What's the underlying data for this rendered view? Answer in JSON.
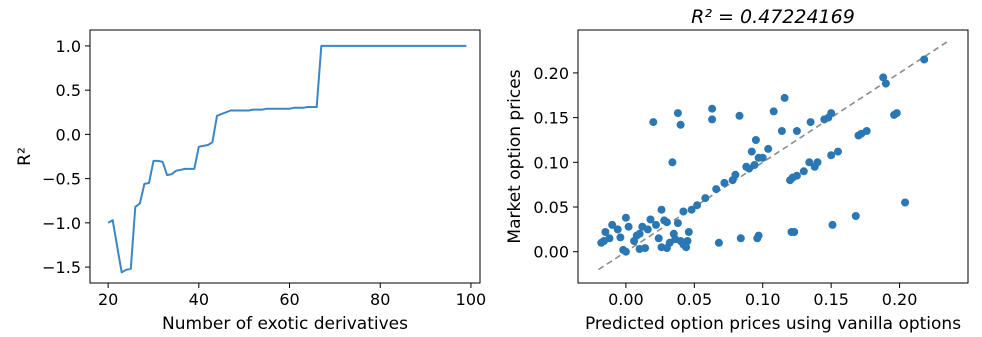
{
  "chart_data": [
    {
      "type": "line",
      "title": "",
      "xlabel": "Number of exotic derivatives",
      "ylabel": "R²",
      "xlim": [
        16,
        102
      ],
      "ylim": [
        -1.68,
        1.18
      ],
      "xticks": [
        20,
        40,
        60,
        80,
        100
      ],
      "xtick_labels": [
        "20",
        "40",
        "60",
        "80",
        "100"
      ],
      "yticks": [
        -1.5,
        -1.0,
        -0.5,
        0.0,
        0.5,
        1.0
      ],
      "ytick_labels": [
        "−1.5",
        "−1.0",
        "−0.5",
        "0.0",
        "0.5",
        "1.0"
      ],
      "grid": false,
      "series": [
        {
          "color": "#3a86c6",
          "x": [
            20,
            21,
            22,
            23,
            24,
            25,
            26,
            27,
            28,
            29,
            30,
            31,
            32,
            33,
            34,
            35,
            36,
            37,
            38,
            39,
            40,
            41,
            42,
            43,
            44,
            45,
            46,
            47,
            48,
            49,
            50,
            51,
            52,
            53,
            54,
            55,
            56,
            57,
            58,
            59,
            60,
            61,
            62,
            63,
            64,
            65,
            66,
            67,
            68,
            69,
            70,
            71,
            72,
            73,
            74,
            75,
            76,
            77,
            78,
            79,
            80,
            81,
            82,
            83,
            84,
            85,
            86,
            87,
            88,
            89,
            90,
            91,
            92,
            93,
            94,
            95,
            96,
            97,
            98,
            99
          ],
          "values": [
            -1.0,
            -0.97,
            -1.27,
            -1.56,
            -1.53,
            -1.52,
            -0.82,
            -0.78,
            -0.56,
            -0.55,
            -0.3,
            -0.3,
            -0.31,
            -0.46,
            -0.45,
            -0.41,
            -0.4,
            -0.39,
            -0.39,
            -0.39,
            -0.14,
            -0.13,
            -0.12,
            -0.09,
            0.21,
            0.23,
            0.25,
            0.27,
            0.27,
            0.27,
            0.27,
            0.27,
            0.28,
            0.28,
            0.28,
            0.29,
            0.29,
            0.29,
            0.29,
            0.29,
            0.29,
            0.3,
            0.3,
            0.3,
            0.31,
            0.31,
            0.31,
            1.0,
            1.0,
            1.0,
            1.0,
            1.0,
            1.0,
            1.0,
            1.0,
            1.0,
            1.0,
            1.0,
            1.0,
            1.0,
            1.0,
            1.0,
            1.0,
            1.0,
            1.0,
            1.0,
            1.0,
            1.0,
            1.0,
            1.0,
            1.0,
            1.0,
            1.0,
            1.0,
            1.0,
            1.0,
            1.0,
            1.0,
            1.0,
            1.0
          ]
        }
      ]
    },
    {
      "type": "scatter",
      "title": "R² = 0.47224169",
      "xlabel": "Predicted option prices using vanilla options",
      "ylabel": "Market option prices",
      "xlim": [
        -0.035,
        0.25
      ],
      "ylim": [
        -0.035,
        0.248
      ],
      "xticks": [
        0.0,
        0.05,
        0.1,
        0.15,
        0.2
      ],
      "xtick_labels": [
        "0.00",
        "0.05",
        "0.10",
        "0.15",
        "0.20"
      ],
      "yticks": [
        0.0,
        0.05,
        0.1,
        0.15,
        0.2
      ],
      "ytick_labels": [
        "0.00",
        "0.05",
        "0.10",
        "0.15",
        "0.20"
      ],
      "grid": false,
      "point_color": "#2a77b4",
      "reference_line": {
        "color": "#8c8c8c",
        "style": "dashed",
        "x": [
          -0.02,
          0.235
        ],
        "y": [
          -0.02,
          0.235
        ]
      },
      "points": [
        [
          -0.018,
          0.01
        ],
        [
          -0.016,
          0.012
        ],
        [
          -0.015,
          0.022
        ],
        [
          -0.012,
          0.015
        ],
        [
          -0.01,
          0.03
        ],
        [
          -0.006,
          0.025
        ],
        [
          -0.004,
          0.016
        ],
        [
          -0.002,
          0.002
        ],
        [
          0.0,
          0.0
        ],
        [
          0.0,
          0.038
        ],
        [
          0.002,
          0.028
        ],
        [
          0.006,
          0.012
        ],
        [
          0.008,
          0.018
        ],
        [
          0.01,
          0.02
        ],
        [
          0.01,
          0.003
        ],
        [
          0.012,
          0.028
        ],
        [
          0.014,
          0.004
        ],
        [
          0.016,
          0.025
        ],
        [
          0.018,
          0.036
        ],
        [
          0.02,
          0.145
        ],
        [
          0.022,
          0.03
        ],
        [
          0.024,
          0.015
        ],
        [
          0.026,
          0.005
        ],
        [
          0.026,
          0.047
        ],
        [
          0.028,
          0.035
        ],
        [
          0.03,
          0.004
        ],
        [
          0.03,
          0.033
        ],
        [
          0.032,
          0.01
        ],
        [
          0.034,
          0.1
        ],
        [
          0.035,
          0.02
        ],
        [
          0.036,
          0.014
        ],
        [
          0.038,
          0.155
        ],
        [
          0.038,
          0.032
        ],
        [
          0.04,
          0.142
        ],
        [
          0.04,
          0.012
        ],
        [
          0.042,
          0.045
        ],
        [
          0.042,
          0.008
        ],
        [
          0.044,
          0.005
        ],
        [
          0.045,
          0.012
        ],
        [
          0.046,
          0.022
        ],
        [
          0.048,
          0.047
        ],
        [
          0.052,
          0.052
        ],
        [
          0.058,
          0.06
        ],
        [
          0.063,
          0.16
        ],
        [
          0.063,
          0.148
        ],
        [
          0.066,
          0.07
        ],
        [
          0.068,
          0.01
        ],
        [
          0.072,
          0.077
        ],
        [
          0.078,
          0.08
        ],
        [
          0.08,
          0.086
        ],
        [
          0.083,
          0.152
        ],
        [
          0.084,
          0.015
        ],
        [
          0.088,
          0.095
        ],
        [
          0.09,
          0.093
        ],
        [
          0.092,
          0.112
        ],
        [
          0.094,
          0.097
        ],
        [
          0.095,
          0.125
        ],
        [
          0.096,
          0.015
        ],
        [
          0.097,
          0.105
        ],
        [
          0.097,
          0.018
        ],
        [
          0.1,
          0.105
        ],
        [
          0.104,
          0.115
        ],
        [
          0.108,
          0.157
        ],
        [
          0.114,
          0.135
        ],
        [
          0.116,
          0.172
        ],
        [
          0.12,
          0.08
        ],
        [
          0.121,
          0.022
        ],
        [
          0.122,
          0.083
        ],
        [
          0.123,
          0.022
        ],
        [
          0.125,
          0.085
        ],
        [
          0.125,
          0.135
        ],
        [
          0.13,
          0.09
        ],
        [
          0.134,
          0.1
        ],
        [
          0.135,
          0.145
        ],
        [
          0.138,
          0.095
        ],
        [
          0.14,
          0.1
        ],
        [
          0.145,
          0.148
        ],
        [
          0.148,
          0.15
        ],
        [
          0.15,
          0.155
        ],
        [
          0.15,
          0.108
        ],
        [
          0.151,
          0.03
        ],
        [
          0.155,
          0.112
        ],
        [
          0.168,
          0.04
        ],
        [
          0.17,
          0.13
        ],
        [
          0.172,
          0.132
        ],
        [
          0.176,
          0.135
        ],
        [
          0.188,
          0.195
        ],
        [
          0.19,
          0.188
        ],
        [
          0.196,
          0.153
        ],
        [
          0.198,
          0.155
        ],
        [
          0.204,
          0.055
        ],
        [
          0.218,
          0.215
        ]
      ]
    }
  ]
}
